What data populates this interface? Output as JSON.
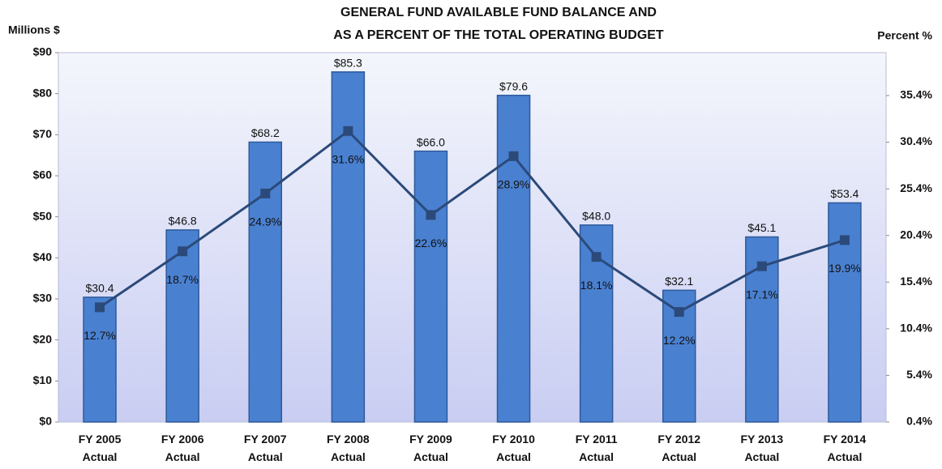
{
  "chart_data": {
    "type": "bar",
    "title": [
      "GENERAL FUND AVAILABLE FUND BALANCE AND",
      "AS A PERCENT OF THE TOTAL OPERATING BUDGET"
    ],
    "y_label": "Millions $",
    "y2_label": "Percent %",
    "categories": [
      [
        "FY 2005",
        "Actual"
      ],
      [
        "FY 2006",
        "Actual"
      ],
      [
        "FY 2007",
        "Actual"
      ],
      [
        "FY 2008",
        "Actual"
      ],
      [
        "FY 2009",
        "Actual"
      ],
      [
        "FY 2010",
        "Actual"
      ],
      [
        "FY 2011",
        "Actual"
      ],
      [
        "FY 2012",
        "Actual"
      ],
      [
        "FY 2013",
        "Actual"
      ],
      [
        "FY 2014",
        "Actual"
      ]
    ],
    "series": [
      {
        "type": "bar",
        "color": "#4a80d0",
        "values": [
          30.4,
          46.8,
          68.2,
          85.3,
          66.0,
          79.6,
          48.0,
          32.1,
          45.1,
          53.4
        ],
        "value_labels": [
          "$30.4",
          "$46.8",
          "$68.2",
          "$85.3",
          "$66.0",
          "$79.6",
          "$48.0",
          "$32.1",
          "$45.1",
          "$53.4"
        ]
      },
      {
        "type": "line",
        "axis": "y2",
        "color": "#2b4a7a",
        "values": [
          12.7,
          18.7,
          24.9,
          31.6,
          22.6,
          28.9,
          18.1,
          12.2,
          17.1,
          19.9
        ],
        "value_labels": [
          "12.7%",
          "18.7%",
          "24.9%",
          "31.6%",
          "22.6%",
          "28.9%",
          "18.1%",
          "12.2%",
          "17.1%",
          "19.9%"
        ]
      }
    ],
    "ylim": [
      0,
      90
    ],
    "yticks": [
      {
        "value": 0,
        "label": "$0"
      },
      {
        "value": 10,
        "label": "$10"
      },
      {
        "value": 20,
        "label": "$20"
      },
      {
        "value": 30,
        "label": "$30"
      },
      {
        "value": 40,
        "label": "$40"
      },
      {
        "value": 50,
        "label": "$50"
      },
      {
        "value": 60,
        "label": "$60"
      },
      {
        "value": 70,
        "label": "$70"
      },
      {
        "value": 80,
        "label": "$80"
      },
      {
        "value": 90,
        "label": "$90"
      }
    ],
    "y2lim": [
      0.4,
      40.0
    ],
    "y2ticks": [
      {
        "value": 0.4,
        "label": "0.4%"
      },
      {
        "value": 5.4,
        "label": "5.4%"
      },
      {
        "value": 10.4,
        "label": "10.4%"
      },
      {
        "value": 15.4,
        "label": "15.4%"
      },
      {
        "value": 20.4,
        "label": "20.4%"
      },
      {
        "value": 25.4,
        "label": "25.4%"
      },
      {
        "value": 30.4,
        "label": "30.4%"
      },
      {
        "value": 35.4,
        "label": "35.4%"
      }
    ]
  }
}
